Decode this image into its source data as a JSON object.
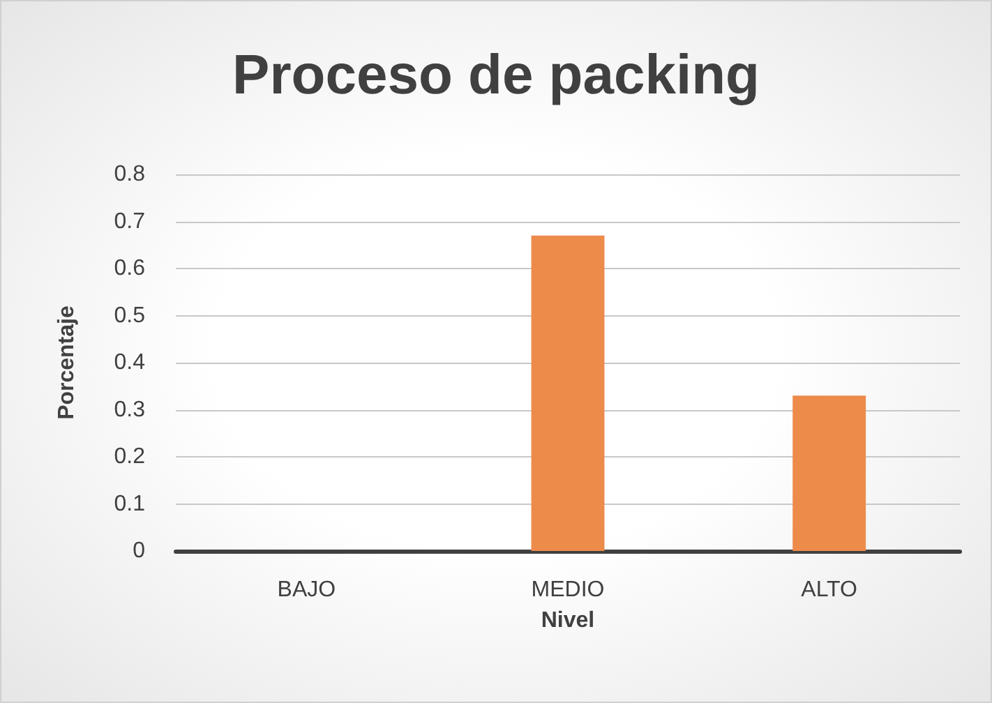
{
  "chart_data": {
    "type": "bar",
    "title": "Proceso de packing",
    "xlabel": "Nivel",
    "ylabel": "Porcentaje",
    "categories": [
      "BAJO",
      "MEDIO",
      "ALTO"
    ],
    "values": [
      0,
      0.67,
      0.33
    ],
    "color": "#ed8b4b",
    "ylim": [
      0,
      0.8
    ],
    "yticks": [
      0,
      0.1,
      0.2,
      0.3,
      0.4,
      0.5,
      0.6,
      0.7,
      0.8
    ],
    "grid": "y"
  }
}
